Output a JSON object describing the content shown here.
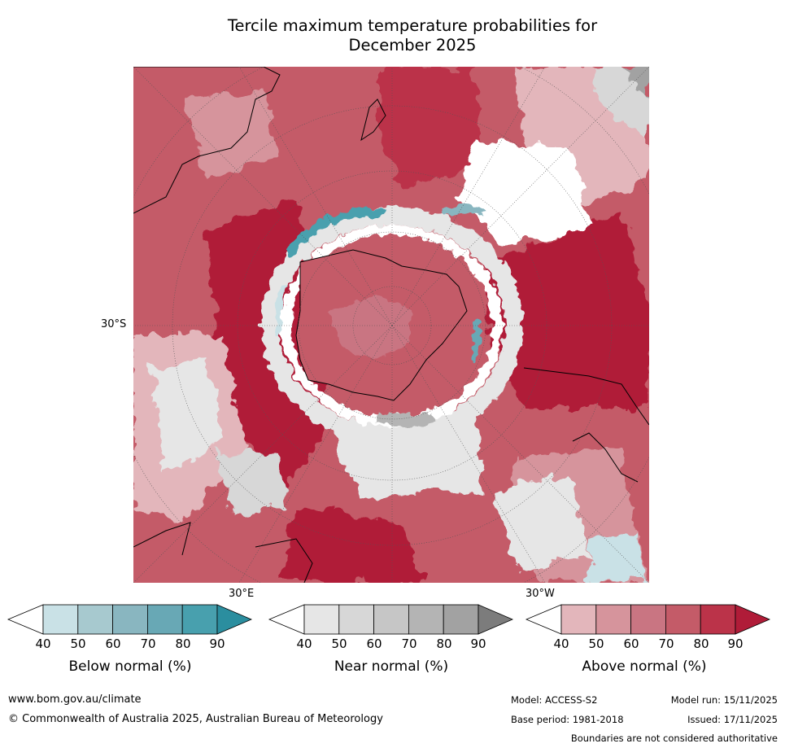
{
  "title_line1": "Tercile maximum temperature probabilities for",
  "title_line2": "December 2025",
  "map": {
    "lat_label": "30°S",
    "lon_label_east": "30°E",
    "lon_label_west": "30°W"
  },
  "colorbars": [
    {
      "label": "Below normal (%)",
      "ticks": [
        "40",
        "50",
        "60",
        "70",
        "80",
        "90"
      ],
      "colors": [
        "#ffffff",
        "#c9e1e6",
        "#a7c9cf",
        "#89b6c0",
        "#68a8b5",
        "#48a0ae",
        "#2b8e9f"
      ]
    },
    {
      "label": "Near normal (%)",
      "ticks": [
        "40",
        "50",
        "60",
        "70",
        "80",
        "90"
      ],
      "colors": [
        "#ffffff",
        "#e6e6e6",
        "#d7d7d7",
        "#c6c6c6",
        "#b4b4b4",
        "#a2a2a2",
        "#7c7c7c"
      ]
    },
    {
      "label": "Above normal (%)",
      "ticks": [
        "40",
        "50",
        "60",
        "70",
        "80",
        "90"
      ],
      "colors": [
        "#ffffff",
        "#e3b6bb",
        "#d6949c",
        "#c97582",
        "#c45b68",
        "#bb3349",
        "#b01c38"
      ]
    }
  ],
  "footer": {
    "website": "www.bom.gov.au/climate",
    "copyright": "© Commonwealth of Australia 2025, Australian Bureau of Meteorology",
    "model": "Model: ACCESS-S2",
    "base_period": "Base period: 1981-2018",
    "model_run": "Model run: 15/11/2025",
    "issued": "Issued: 17/11/2025",
    "disclaimer": "Boundaries are not considered authoritative"
  }
}
